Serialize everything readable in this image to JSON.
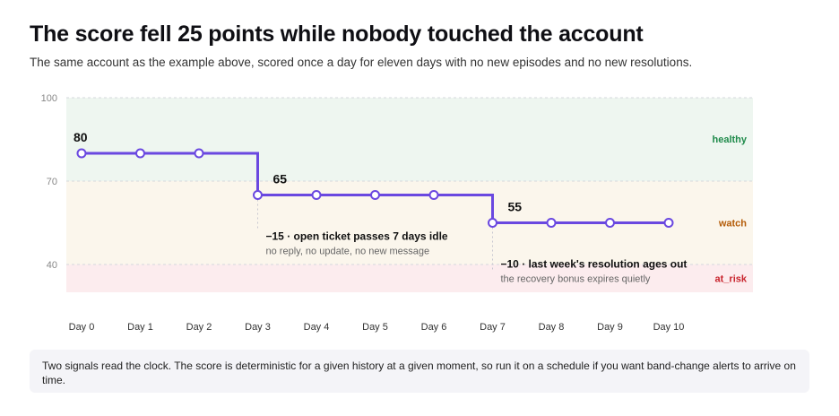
{
  "title": "The score fell 25 points while nobody touched the account",
  "subtitle": "The same account as the example above, scored once a day for eleven days with no new episodes and no new resolutions.",
  "note": "Two signals read the clock. The score is deterministic for a given history at a given moment, so run it on a schedule if you want band-change alerts to arrive on time.",
  "chart_data": {
    "type": "line",
    "step": true,
    "categories": [
      "Day 0",
      "Day 1",
      "Day 2",
      "Day 3",
      "Day 4",
      "Day 5",
      "Day 6",
      "Day 7",
      "Day 8",
      "Day 9",
      "Day 10"
    ],
    "series": [
      {
        "values": [
          80,
          80,
          80,
          65,
          65,
          65,
          65,
          55,
          55,
          55,
          55
        ]
      }
    ],
    "ylim": [
      30,
      100
    ],
    "yticks": [
      100,
      70,
      40
    ],
    "grid": true,
    "line_color": "#6a48e0",
    "value_labels": [
      {
        "x": "Day 0",
        "y": 80,
        "text": "80"
      },
      {
        "x": "Day 3",
        "y": 65,
        "text": "65"
      },
      {
        "x": "Day 7",
        "y": 55,
        "text": "55"
      }
    ],
    "bands": [
      {
        "label": "healthy",
        "from": 70,
        "to": 100,
        "fill": "#eef6f0",
        "label_color": "#1e8a4a"
      },
      {
        "label": "watch",
        "from": 40,
        "to": 70,
        "fill": "#fbf6ec",
        "label_color": "#b45c08"
      },
      {
        "label": "at_risk",
        "from": 30,
        "to": 40,
        "fill": "#fcecee",
        "label_color": "#c8232c"
      }
    ],
    "annotations": [
      {
        "x": "Day 3",
        "title": "−15 · open ticket passes 7 days idle",
        "detail": "no reply, no update, no new message"
      },
      {
        "x": "Day 7",
        "title": "−10 · last week's resolution ages out",
        "detail": "the recovery bonus expires quietly"
      }
    ]
  }
}
